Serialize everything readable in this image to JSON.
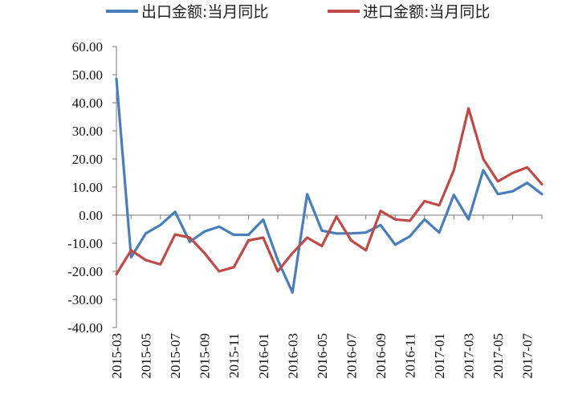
{
  "chart_data": {
    "type": "line",
    "x": [
      "2015-03",
      "2015-04",
      "2015-05",
      "2015-06",
      "2015-07",
      "2015-08",
      "2015-09",
      "2015-10",
      "2015-11",
      "2015-12",
      "2016-01",
      "2016-02",
      "2016-03",
      "2016-04",
      "2016-05",
      "2016-06",
      "2016-07",
      "2016-08",
      "2016-09",
      "2016-10",
      "2016-11",
      "2016-12",
      "2017-01",
      "2017-02",
      "2017-03",
      "2017-04",
      "2017-05",
      "2017-06",
      "2017-07",
      "2017-08"
    ],
    "x_tick_labels": [
      "2015-03",
      "2015-05",
      "2015-07",
      "2015-09",
      "2015-11",
      "2016-01",
      "2016-03",
      "2016-05",
      "2016-07",
      "2016-09",
      "2016-11",
      "2017-01",
      "2017-03",
      "2017-05",
      "2017-07"
    ],
    "y_tick_labels": [
      "60.00",
      "50.00",
      "40.00",
      "30.00",
      "20.00",
      "10.00",
      "0.00",
      "-10.00",
      "-20.00",
      "-30.00",
      "-40.00"
    ],
    "ylim": [
      -40,
      60
    ],
    "grid": false,
    "legend_position": "top",
    "series": [
      {
        "name": "出口金额:当月同比",
        "color": "#4A7EBB",
        "values": [
          48.5,
          -15,
          -6.5,
          -3.5,
          1.2,
          -9.5,
          -5.8,
          -4.1,
          -7.0,
          -7.0,
          -1.6,
          -16,
          -27.5,
          7.5,
          -5.5,
          -6.5,
          -6.5,
          -6.2,
          -3.5,
          -10.5,
          -7.5,
          -1.5,
          -6.2,
          7.2,
          -1.5,
          16,
          7.5,
          8.5,
          11.5,
          7.5
        ]
      },
      {
        "name": "进口金额:当月同比",
        "color": "#BE4B48",
        "values": [
          -21,
          -12.5,
          -16,
          -17.5,
          -6.9,
          -8,
          -13.5,
          -20,
          -18.5,
          -9,
          -8,
          -20,
          -13.5,
          -8,
          -11,
          -0.5,
          -9,
          -12.5,
          1.5,
          -1.5,
          -2,
          5,
          3.5,
          16,
          38,
          20,
          12,
          15,
          17,
          11
        ]
      }
    ]
  }
}
